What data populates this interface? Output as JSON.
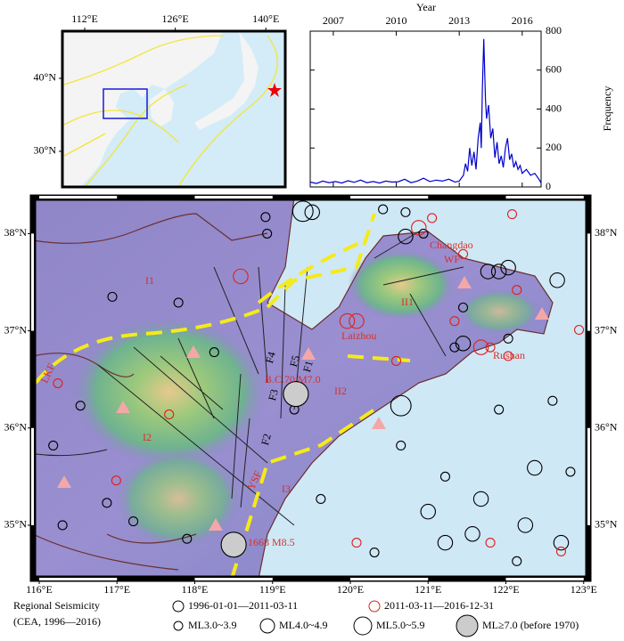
{
  "inset_map": {
    "xlim": [
      108.55,
      143.0
    ],
    "ylim": [
      25.12,
      46.46
    ],
    "xticks": [
      {
        "value": 112,
        "label": "112°E"
      },
      {
        "value": 126,
        "label": "126°E"
      },
      {
        "value": 140,
        "label": "140°E"
      }
    ],
    "yticks": [
      {
        "value": 30,
        "label": "30°N"
      },
      {
        "value": 40,
        "label": "40°N"
      }
    ]
  },
  "frequency_chart": {
    "type": "line",
    "x_label": "Year",
    "y_label": "Frequency",
    "xlim": [
      2005.9,
      2016.9
    ],
    "ylim": [
      0,
      800
    ],
    "xticks": [
      2007,
      2010,
      2013,
      2016
    ],
    "yticks": [
      0,
      200,
      400,
      600,
      800
    ],
    "series": [
      {
        "color": "#0000cc",
        "x": [
          2005.9,
          2006.2,
          2006.5,
          2006.8,
          2007.1,
          2007.4,
          2007.7,
          2008.0,
          2008.3,
          2008.6,
          2008.9,
          2009.2,
          2009.5,
          2009.8,
          2010.1,
          2010.4,
          2010.7,
          2011.0,
          2011.3,
          2011.6,
          2011.9,
          2012.2,
          2012.5,
          2012.8,
          2013.0,
          2013.2,
          2013.3,
          2013.4,
          2013.5,
          2013.6,
          2013.7,
          2013.8,
          2013.9,
          2014.0,
          2014.05,
          2014.1,
          2014.17,
          2014.25,
          2014.3,
          2014.4,
          2014.5,
          2014.6,
          2014.7,
          2014.8,
          2014.9,
          2015.0,
          2015.1,
          2015.2,
          2015.3,
          2015.4,
          2015.5,
          2015.6,
          2015.7,
          2015.8,
          2015.9,
          2016.0,
          2016.2,
          2016.4,
          2016.6,
          2016.8,
          2016.9
        ],
        "values": [
          25,
          18,
          30,
          22,
          28,
          20,
          32,
          24,
          35,
          22,
          28,
          20,
          30,
          25,
          27,
          40,
          22,
          30,
          45,
          28,
          35,
          30,
          40,
          25,
          30,
          60,
          120,
          80,
          200,
          110,
          180,
          90,
          250,
          330,
          200,
          500,
          760,
          450,
          350,
          420,
          250,
          300,
          150,
          230,
          120,
          160,
          100,
          200,
          250,
          140,
          170,
          100,
          130,
          90,
          110,
          70,
          90,
          60,
          70,
          40,
          20
        ]
      }
    ]
  },
  "main_map": {
    "xlim": [
      115.92,
      123.06
    ],
    "ylim": [
      34.45,
      38.37
    ],
    "xticks": [
      {
        "value": 116,
        "label": "116°E"
      },
      {
        "value": 117,
        "label": "117°E"
      },
      {
        "value": 118,
        "label": "118°E"
      },
      {
        "value": 119,
        "label": "119°E"
      },
      {
        "value": 120,
        "label": "120°E"
      },
      {
        "value": 121,
        "label": "121°E"
      },
      {
        "value": 122,
        "label": "122°E"
      },
      {
        "value": 123,
        "label": "123°E"
      }
    ],
    "yticks": [
      {
        "value": 35,
        "label": "35°N"
      },
      {
        "value": 36,
        "label": "36°N"
      },
      {
        "value": 37,
        "label": "37°N"
      },
      {
        "value": 38,
        "label": "38°N"
      }
    ],
    "annotations": [
      "I1",
      "I2",
      "I3",
      "II1",
      "II2",
      "LKF",
      "F1",
      "F2",
      "F3",
      "F4",
      "F5",
      "YSF",
      "WF",
      "B.C.70 M7.0",
      "1668 M8.5",
      "Changdao",
      "Laizhou",
      "Rushan"
    ],
    "events": [
      {
        "name": "1996-01-01—2011-03-11",
        "color": "#000000",
        "lon": [
          118.91,
          119.51,
          119.39,
          120.42,
          120.71,
          120.71,
          120.94,
          121.91,
          122.03,
          121.77,
          122.66,
          121.45,
          121.34,
          121.45,
          122.03,
          120.65,
          116.94,
          117.79,
          118.25,
          116.53,
          116.18,
          116.87,
          117.21,
          116.3,
          117.9,
          118.93,
          119.28,
          121.22,
          121.68,
          121.0,
          121.57,
          122.37,
          122.83,
          122.25,
          122.71,
          120.31,
          121.22,
          122.14,
          120.65,
          119.62,
          121.91,
          122.6
        ],
        "lat": [
          38.17,
          38.22,
          38.23,
          38.25,
          38.22,
          37.97,
          38.0,
          37.61,
          37.65,
          37.61,
          37.52,
          37.24,
          36.83,
          36.87,
          36.92,
          36.23,
          37.35,
          37.29,
          36.78,
          36.23,
          35.82,
          35.23,
          35.04,
          35.0,
          34.86,
          38.0,
          36.19,
          35.5,
          35.27,
          35.14,
          34.91,
          35.59,
          35.55,
          35.0,
          34.82,
          34.72,
          34.82,
          34.63,
          35.82,
          35.27,
          36.19,
          36.28
        ],
        "mag": [
          3.5,
          4.5,
          5.5,
          3.5,
          3.5,
          4.5,
          3.5,
          4.5,
          4.5,
          4.5,
          4.5,
          3.5,
          3.5,
          4.5,
          3.5,
          5.5,
          3.5,
          3.5,
          3.5,
          3.5,
          3.5,
          3.5,
          3.5,
          3.5,
          3.5,
          3.5,
          3.5,
          3.5,
          4.5,
          4.5,
          4.5,
          4.5,
          3.5,
          4.5,
          4.5,
          3.5,
          4.5,
          3.5,
          3.5,
          3.5,
          3.5,
          3.5
        ]
      },
      {
        "name": "2011-03-11—2016-12-31",
        "color": "#e0201a",
        "lon": [
          118.59,
          119.96,
          120.08,
          121.05,
          120.88,
          121.45,
          122.14,
          121.68,
          121.8,
          121.34,
          120.59,
          116.24,
          117.67,
          116.99,
          120.08,
          122.03,
          122.94,
          121.8,
          122.71,
          122.08
        ],
        "lat": [
          37.56,
          37.1,
          37.1,
          38.16,
          38.06,
          37.79,
          37.42,
          36.83,
          36.83,
          37.1,
          36.69,
          36.46,
          36.14,
          35.46,
          34.82,
          36.74,
          37.01,
          34.82,
          34.73,
          38.2
        ],
        "mag": [
          4.5,
          4.5,
          4.5,
          3.5,
          4.5,
          3.5,
          3.5,
          4.5,
          3.5,
          3.5,
          3.5,
          3.5,
          3.5,
          3.5,
          3.5,
          3.5,
          3.5,
          3.5,
          3.5,
          3.5
        ]
      },
      {
        "name": "ML≥7.0 (before 1970)",
        "color": "#cccccc",
        "lon": [
          119.3,
          118.5
        ],
        "lat": [
          36.35,
          34.8
        ],
        "mag": [
          7.0,
          8.5
        ]
      }
    ]
  },
  "legend": {
    "title": "Regional Seismicity",
    "source": "(CEA, 1996—2016)",
    "sizes": [
      "ML3.0~3.9",
      "ML4.0~4.9",
      "ML5.0~5.9"
    ]
  }
}
